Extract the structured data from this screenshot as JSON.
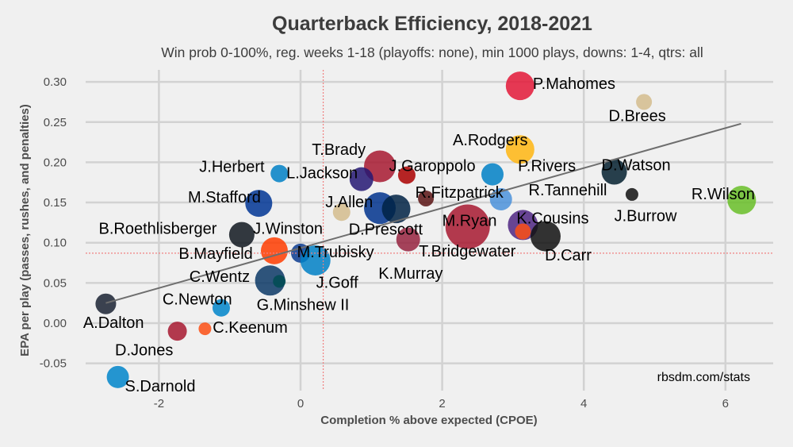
{
  "chart_data": {
    "type": "scatter",
    "title": "Quarterback Efficiency, 2018-2021",
    "subtitle": "Win prob 0-100%, reg. weeks 1-18 (playoffs: none), min 1000 plays, downs: 1-4, qtrs: all",
    "xlabel": "Completion % above expected (CPOE)",
    "ylabel": "EPA per play (passes, rushes, and penalties)",
    "caption": "rbsdm.com/stats",
    "xlim": [
      -3.2,
      6.5
    ],
    "ylim": [
      -0.084,
      0.316
    ],
    "x_ticks": [
      -2,
      0,
      2,
      4,
      6
    ],
    "x_tick_labels": [
      "-2",
      "0",
      "2",
      "4",
      "6"
    ],
    "y_ticks": [
      0.3,
      0.25,
      0.2,
      0.15,
      0.1,
      0.05,
      0.0,
      -0.05
    ],
    "y_tick_labels": [
      "0.30",
      "0.25",
      "0.20",
      "0.15",
      "0.10",
      "0.05",
      "0.00",
      "-0.05"
    ],
    "grid": true,
    "mean_lines": {
      "x": 0.32,
      "y": 0.087,
      "color": "#f08080"
    },
    "trend_line": {
      "x1": -2.75,
      "y1": 0.025,
      "x2": 6.22,
      "y2": 0.248,
      "color": "#6e6e6e"
    },
    "points": [
      {
        "name": "P.Mahomes",
        "x": 3.1,
        "y": 0.295,
        "size": 18,
        "color": "#e31837",
        "lx": 3.28,
        "ly": 0.298,
        "anchor": "start"
      },
      {
        "name": "D.Brees",
        "x": 4.85,
        "y": 0.275,
        "size": 10,
        "color": "#d3bc8d",
        "lx": 4.35,
        "ly": 0.258,
        "anchor": "start"
      },
      {
        "name": "A.Rodgers",
        "x": 3.1,
        "y": 0.216,
        "size": 18,
        "color": "#ffb612",
        "lx": 2.15,
        "ly": 0.228,
        "anchor": "start"
      },
      {
        "name": "P.Rivers",
        "x": 2.71,
        "y": 0.185,
        "size": 14,
        "color": "#0080c6",
        "lx": 3.07,
        "ly": 0.196,
        "anchor": "start"
      },
      {
        "name": "D.Watson",
        "x": 4.43,
        "y": 0.188,
        "size": 16,
        "color": "#03202f",
        "lx": 4.25,
        "ly": 0.197,
        "anchor": "start"
      },
      {
        "name": "R.Tannehill",
        "x": 2.83,
        "y": 0.154,
        "size": 14,
        "color": "#4b92db",
        "lx": 3.22,
        "ly": 0.166,
        "anchor": "start"
      },
      {
        "name": "J.Burrow",
        "x": 4.68,
        "y": 0.16,
        "size": 8,
        "color": "#111111",
        "lx": 4.43,
        "ly": 0.134,
        "anchor": "start"
      },
      {
        "name": "R.Wilson",
        "x": 6.23,
        "y": 0.153,
        "size": 18,
        "color": "#69be28",
        "lx": 5.52,
        "ly": 0.161,
        "anchor": "start"
      },
      {
        "name": "T.Brady",
        "x": 1.12,
        "y": 0.195,
        "size": 20,
        "color": "#a71930",
        "lx": 0.16,
        "ly": 0.216,
        "anchor": "start"
      },
      {
        "name": "J.Garoppolo",
        "x": 1.5,
        "y": 0.184,
        "size": 11,
        "color": "#aa0000",
        "lx": 1.25,
        "ly": 0.196,
        "anchor": "start"
      },
      {
        "name": "L.Jackson",
        "x": 0.86,
        "y": 0.179,
        "size": 15,
        "color": "#241773",
        "lx": -0.2,
        "ly": 0.187,
        "anchor": "start"
      },
      {
        "name": "J.Herbert",
        "x": -0.3,
        "y": 0.186,
        "size": 11,
        "color": "#0080c6",
        "lx": -1.43,
        "ly": 0.195,
        "anchor": "start"
      },
      {
        "name": "M.Stafford",
        "x": -0.59,
        "y": 0.149,
        "size": 17,
        "color": "#003594",
        "lx": -1.59,
        "ly": 0.157,
        "anchor": "start"
      },
      {
        "name": "J.Allen",
        "x": 0.58,
        "y": 0.138,
        "size": 11,
        "color": "#d3bc8d",
        "lx": 0.35,
        "ly": 0.151,
        "anchor": "start"
      },
      {
        "name": "D.Prescott",
        "x": 1.12,
        "y": 0.143,
        "size": 20,
        "color": "#00338d",
        "lx": 0.68,
        "ly": 0.117,
        "anchor": "start"
      },
      {
        "name": "",
        "x": 1.35,
        "y": 0.142,
        "size": 18,
        "color": "#002244",
        "lx": 0,
        "ly": 0,
        "anchor": "start"
      },
      {
        "name": "R.Fitzpatrick",
        "x": 1.77,
        "y": 0.155,
        "size": 10,
        "color": "#5a1414",
        "lx": 1.62,
        "ly": 0.163,
        "anchor": "start"
      },
      {
        "name": "M.Ryan",
        "x": 2.36,
        "y": 0.12,
        "size": 28,
        "color": "#a71930",
        "lx": 2.0,
        "ly": 0.128,
        "anchor": "start"
      },
      {
        "name": "K.Cousins",
        "x": 3.14,
        "y": 0.122,
        "size": 19,
        "color": "#4f2683",
        "lx": 3.05,
        "ly": 0.131,
        "anchor": "start"
      },
      {
        "name": "",
        "x": 3.14,
        "y": 0.114,
        "size": 10,
        "color": "#fb4f14",
        "lx": 0,
        "ly": 0,
        "anchor": "start"
      },
      {
        "name": "D.Carr",
        "x": 3.46,
        "y": 0.108,
        "size": 19,
        "color": "#111111",
        "lx": 3.45,
        "ly": 0.085,
        "anchor": "start"
      },
      {
        "name": "T.Bridgewater",
        "x": 1.52,
        "y": 0.104,
        "size": 15,
        "color": "#97233f",
        "lx": 1.67,
        "ly": 0.09,
        "anchor": "start"
      },
      {
        "name": "K.Murray",
        "x": 1.52,
        "y": 0.104,
        "size": 0,
        "color": "#97233f",
        "lx": 1.1,
        "ly": 0.062,
        "anchor": "start"
      },
      {
        "name": "B.Roethlisberger",
        "x": -0.83,
        "y": 0.11,
        "size": 16,
        "color": "#101820",
        "lx": -2.85,
        "ly": 0.118,
        "anchor": "start"
      },
      {
        "name": "J.Winston",
        "x": -0.65,
        "y": 0.125,
        "size": 0,
        "color": "#d3bc8d",
        "lx": -0.67,
        "ly": 0.118,
        "anchor": "start"
      },
      {
        "name": "B.Mayfield",
        "x": -0.37,
        "y": 0.09,
        "size": 17,
        "color": "#ff3c00",
        "lx": -1.72,
        "ly": 0.087,
        "anchor": "start"
      },
      {
        "name": "M.Trubisky",
        "x": 0.0,
        "y": 0.087,
        "size": 12,
        "color": "#0b3b8f",
        "lx": -0.05,
        "ly": 0.089,
        "anchor": "start"
      },
      {
        "name": "J.Goff",
        "x": 0.21,
        "y": 0.078,
        "size": 19,
        "color": "#0080c6",
        "lx": 0.22,
        "ly": 0.051,
        "anchor": "start"
      },
      {
        "name": "C.Wentz",
        "x": -0.43,
        "y": 0.053,
        "size": 19,
        "color": "#0c3866",
        "lx": -1.57,
        "ly": 0.058,
        "anchor": "start"
      },
      {
        "name": "G.Minshew II",
        "x": -0.3,
        "y": 0.052,
        "size": 8,
        "color": "#004c54",
        "lx": -0.62,
        "ly": 0.023,
        "anchor": "start"
      },
      {
        "name": "C.Newton",
        "x": -1.12,
        "y": 0.019,
        "size": 11,
        "color": "#0085ca",
        "lx": -1.95,
        "ly": 0.03,
        "anchor": "start"
      },
      {
        "name": "C.Keenum",
        "x": -1.35,
        "y": -0.007,
        "size": 8,
        "color": "#fb4f14",
        "lx": -1.24,
        "ly": -0.005,
        "anchor": "start"
      },
      {
        "name": "D.Jones",
        "x": -1.74,
        "y": -0.01,
        "size": 12,
        "color": "#a71930",
        "lx": -2.62,
        "ly": -0.033,
        "anchor": "start"
      },
      {
        "name": "A.Dalton",
        "x": -2.75,
        "y": 0.024,
        "size": 13,
        "color": "#1a2233",
        "lx": -3.07,
        "ly": 0.001,
        "anchor": "start"
      },
      {
        "name": "S.Darnold",
        "x": -2.58,
        "y": -0.067,
        "size": 14,
        "color": "#0085ca",
        "lx": -2.48,
        "ly": -0.078,
        "anchor": "start"
      }
    ]
  }
}
